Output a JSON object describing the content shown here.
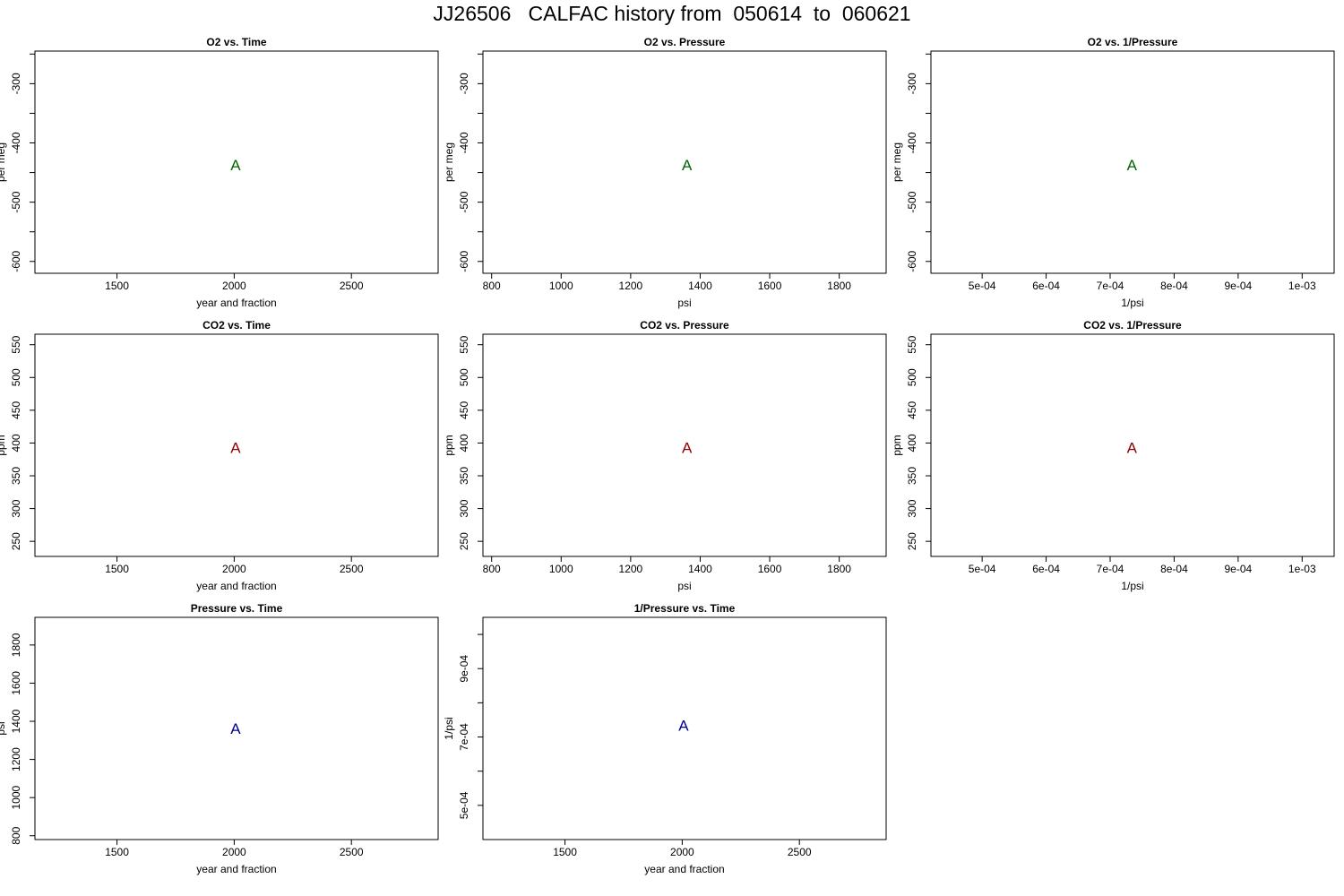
{
  "page": {
    "title": "JJ26506   CALFAC history from  050614  to  060621"
  },
  "chart_data": [
    {
      "type": "scatter",
      "title": "O2 vs. Time",
      "xlabel": "year and fraction",
      "ylabel": "per meg",
      "xlim": [
        1150,
        2870
      ],
      "ylim": [
        -620,
        -245
      ],
      "xticks": [
        1500,
        2000,
        2500
      ],
      "xtick_labels": [
        "1500",
        "2000",
        "2500"
      ],
      "yticks": [
        -600,
        -500,
        -400,
        -300
      ],
      "ytick_labels": [
        "-600",
        "-500",
        "-400",
        "-300"
      ],
      "yminor": [
        -550,
        -450,
        -350,
        -250
      ],
      "points": [
        {
          "x": 2006.0,
          "y": -437,
          "label": "A"
        }
      ],
      "color": "#006400"
    },
    {
      "type": "scatter",
      "title": "O2 vs. Pressure",
      "xlabel": "psi",
      "ylabel": "per meg",
      "xlim": [
        775,
        1935
      ],
      "ylim": [
        -620,
        -245
      ],
      "xticks": [
        800,
        1000,
        1200,
        1400,
        1600,
        1800
      ],
      "xtick_labels": [
        "800",
        "1000",
        "1200",
        "1400",
        "1600",
        "1800"
      ],
      "yticks": [
        -600,
        -500,
        -400,
        -300
      ],
      "ytick_labels": [
        "-600",
        "-500",
        "-400",
        "-300"
      ],
      "yminor": [
        -550,
        -450,
        -350,
        -250
      ],
      "points": [
        {
          "x": 1362,
          "y": -437,
          "label": "A"
        }
      ],
      "color": "#006400"
    },
    {
      "type": "scatter",
      "title": "O2 vs. 1/Pressure",
      "xlabel": "1/psi",
      "ylabel": "per meg",
      "xlim": [
        0.00042,
        0.00105
      ],
      "ylim": [
        -620,
        -245
      ],
      "xticks": [
        0.0005,
        0.0006,
        0.0007,
        0.0008,
        0.0009,
        0.001
      ],
      "xtick_labels": [
        "5e-04",
        "6e-04",
        "7e-04",
        "8e-04",
        "9e-04",
        "1e-03"
      ],
      "yticks": [
        -600,
        -500,
        -400,
        -300
      ],
      "ytick_labels": [
        "-600",
        "-500",
        "-400",
        "-300"
      ],
      "yminor": [
        -550,
        -450,
        -350,
        -250
      ],
      "points": [
        {
          "x": 0.000734,
          "y": -437,
          "label": "A"
        }
      ],
      "color": "#006400"
    },
    {
      "type": "scatter",
      "title": "CO2 vs. Time",
      "xlabel": "year and fraction",
      "ylabel": "ppm",
      "xlim": [
        1150,
        2870
      ],
      "ylim": [
        227,
        566
      ],
      "xticks": [
        1500,
        2000,
        2500
      ],
      "xtick_labels": [
        "1500",
        "2000",
        "2500"
      ],
      "yticks": [
        250,
        300,
        350,
        400,
        450,
        500,
        550
      ],
      "ytick_labels": [
        "250",
        "300",
        "350",
        "400",
        "450",
        "500",
        "550"
      ],
      "yminor": [],
      "points": [
        {
          "x": 2006.0,
          "y": 393,
          "label": "A"
        }
      ],
      "color": "#8b0000"
    },
    {
      "type": "scatter",
      "title": "CO2 vs. Pressure",
      "xlabel": "psi",
      "ylabel": "ppm",
      "xlim": [
        775,
        1935
      ],
      "ylim": [
        227,
        566
      ],
      "xticks": [
        800,
        1000,
        1200,
        1400,
        1600,
        1800
      ],
      "xtick_labels": [
        "800",
        "1000",
        "1200",
        "1400",
        "1600",
        "1800"
      ],
      "yticks": [
        250,
        300,
        350,
        400,
        450,
        500,
        550
      ],
      "ytick_labels": [
        "250",
        "300",
        "350",
        "400",
        "450",
        "500",
        "550"
      ],
      "yminor": [],
      "points": [
        {
          "x": 1362,
          "y": 393,
          "label": "A"
        }
      ],
      "color": "#8b0000"
    },
    {
      "type": "scatter",
      "title": "CO2 vs. 1/Pressure",
      "xlabel": "1/psi",
      "ylabel": "ppm",
      "xlim": [
        0.00042,
        0.00105
      ],
      "ylim": [
        227,
        566
      ],
      "xticks": [
        0.0005,
        0.0006,
        0.0007,
        0.0008,
        0.0009,
        0.001
      ],
      "xtick_labels": [
        "5e-04",
        "6e-04",
        "7e-04",
        "8e-04",
        "9e-04",
        "1e-03"
      ],
      "yticks": [
        250,
        300,
        350,
        400,
        450,
        500,
        550
      ],
      "ytick_labels": [
        "250",
        "300",
        "350",
        "400",
        "450",
        "500",
        "550"
      ],
      "yminor": [],
      "points": [
        {
          "x": 0.000734,
          "y": 393,
          "label": "A"
        }
      ],
      "color": "#8b0000"
    },
    {
      "type": "scatter",
      "title": "Pressure vs. Time",
      "xlabel": "year and fraction",
      "ylabel": "psi",
      "xlim": [
        1150,
        2870
      ],
      "ylim": [
        780,
        1945
      ],
      "xticks": [
        1500,
        2000,
        2500
      ],
      "xtick_labels": [
        "1500",
        "2000",
        "2500"
      ],
      "yticks": [
        800,
        1000,
        1200,
        1400,
        1600,
        1800
      ],
      "ytick_labels": [
        "800",
        "1000",
        "1200",
        "1400",
        "1600",
        "1800"
      ],
      "yminor": [],
      "points": [
        {
          "x": 2006.0,
          "y": 1362,
          "label": "A"
        }
      ],
      "color": "#00008b"
    },
    {
      "type": "scatter",
      "title": "1/Pressure vs. Time",
      "xlabel": "year and fraction",
      "ylabel": "1/psi",
      "xlim": [
        1150,
        2870
      ],
      "ylim": [
        0.0004,
        0.00105
      ],
      "xticks": [
        1500,
        2000,
        2500
      ],
      "xtick_labels": [
        "1500",
        "2000",
        "2500"
      ],
      "yticks": [
        0.0005,
        0.0007,
        0.0009
      ],
      "ytick_labels": [
        "5e-04",
        "7e-04",
        "9e-04"
      ],
      "yminor": [
        0.0006,
        0.0008,
        0.001
      ],
      "points": [
        {
          "x": 2006.0,
          "y": 0.000734,
          "label": "A"
        }
      ],
      "color": "#00008b"
    }
  ]
}
